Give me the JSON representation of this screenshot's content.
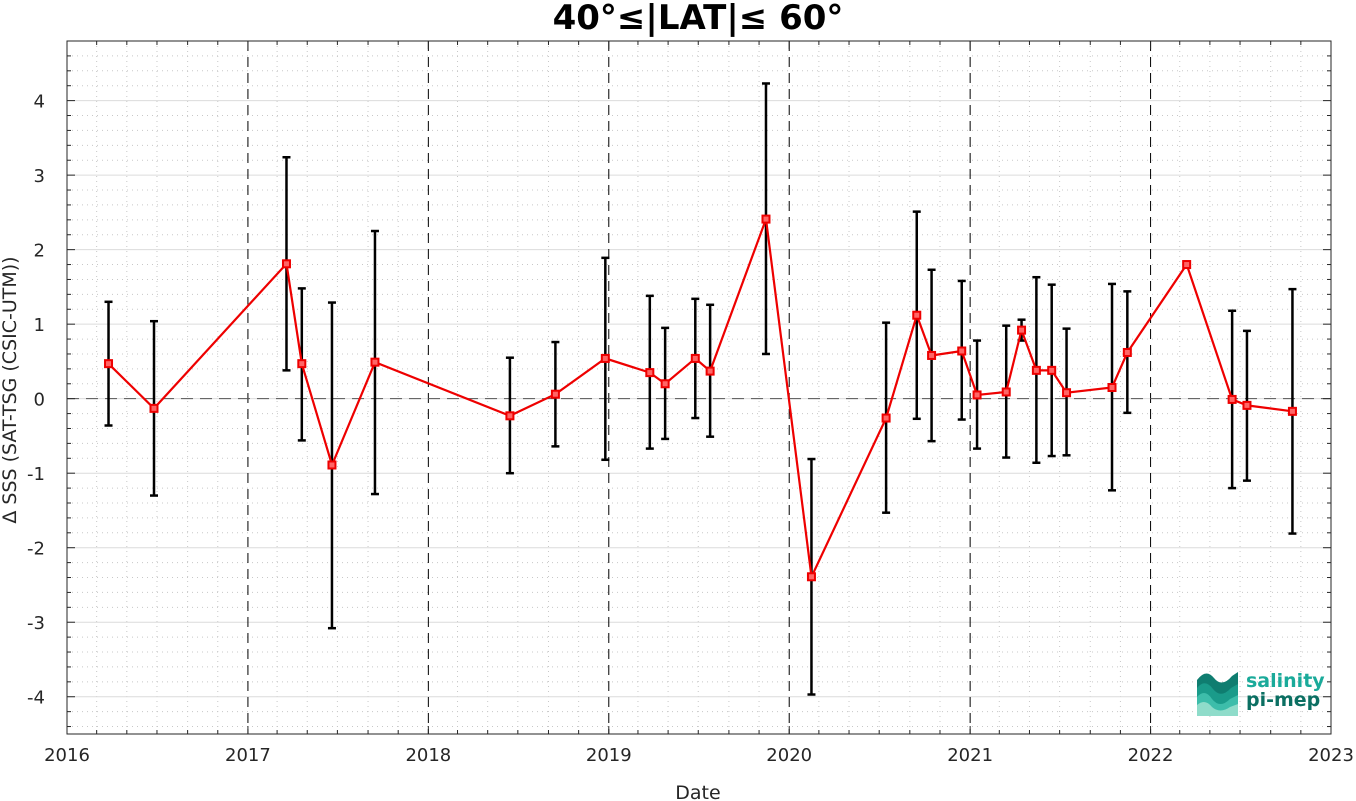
{
  "chart_data": {
    "type": "line",
    "title": "40°≤|LAT|≤ 60°",
    "xlabel": "Date",
    "ylabel": "Δ SSS (SAT-TSG (CSIC-UTM))",
    "xlim": [
      "2016-01-01",
      "2023-01-01"
    ],
    "ylim": [
      -4.5,
      4.8
    ],
    "x_ticks": [
      "2016",
      "2017",
      "2018",
      "2019",
      "2020",
      "2021",
      "2022",
      "2023"
    ],
    "y_ticks": [
      "-4",
      "-3",
      "-2",
      "-1",
      "0",
      "1",
      "2",
      "3",
      "4"
    ],
    "grid": true,
    "minor_grid": true,
    "zero_line": true,
    "year_lines": true,
    "series": [
      {
        "color": "#ee0000",
        "errorbar_color": "#000000",
        "x": [
          "2016-03-25",
          "2016-06-25",
          "2017-03-20",
          "2017-04-20",
          "2017-06-20",
          "2017-09-15",
          "2018-06-15",
          "2018-09-15",
          "2018-12-25",
          "2019-03-25",
          "2019-04-25",
          "2019-06-25",
          "2019-07-25",
          "2019-11-15",
          "2020-02-15",
          "2020-07-15",
          "2020-09-15",
          "2020-10-15",
          "2020-12-15",
          "2021-01-15",
          "2021-03-15",
          "2021-04-15",
          "2021-05-15",
          "2021-06-15",
          "2021-07-15",
          "2021-10-15",
          "2021-11-15",
          "2022-03-15",
          "2022-06-15",
          "2022-07-15",
          "2022-10-15"
        ],
        "y": [
          0.47,
          -0.13,
          1.81,
          0.47,
          -0.89,
          0.49,
          -0.23,
          0.06,
          0.54,
          0.35,
          0.2,
          0.54,
          0.37,
          2.41,
          -2.39,
          -0.26,
          1.12,
          0.58,
          0.64,
          0.05,
          0.09,
          0.92,
          0.38,
          0.38,
          0.08,
          0.15,
          0.62,
          1.8,
          -0.01,
          -0.09,
          -0.17
        ],
        "err_low": [
          -0.36,
          -1.3,
          0.38,
          -0.56,
          -3.08,
          -1.28,
          -1.0,
          -0.64,
          -0.82,
          -0.67,
          -0.54,
          -0.26,
          -0.51,
          0.6,
          -3.97,
          -1.53,
          -0.27,
          -0.57,
          -0.28,
          -0.67,
          -0.79,
          0.78,
          -0.86,
          -0.77,
          -0.76,
          -1.23,
          -0.19,
          1.76,
          -1.2,
          -1.1,
          -1.81
        ],
        "err_high": [
          1.3,
          1.04,
          3.24,
          1.48,
          1.29,
          2.25,
          0.55,
          0.76,
          1.89,
          1.38,
          0.95,
          1.34,
          1.26,
          4.23,
          -0.81,
          1.02,
          2.51,
          1.73,
          1.58,
          0.78,
          0.98,
          1.06,
          1.63,
          1.53,
          0.94,
          1.54,
          1.44,
          1.84,
          1.18,
          0.91,
          1.47
        ]
      }
    ]
  },
  "logo": {
    "line1": "salinity",
    "line2": "pi-mep",
    "color1": "#1aaa9a",
    "color2": "#0b6f62"
  }
}
